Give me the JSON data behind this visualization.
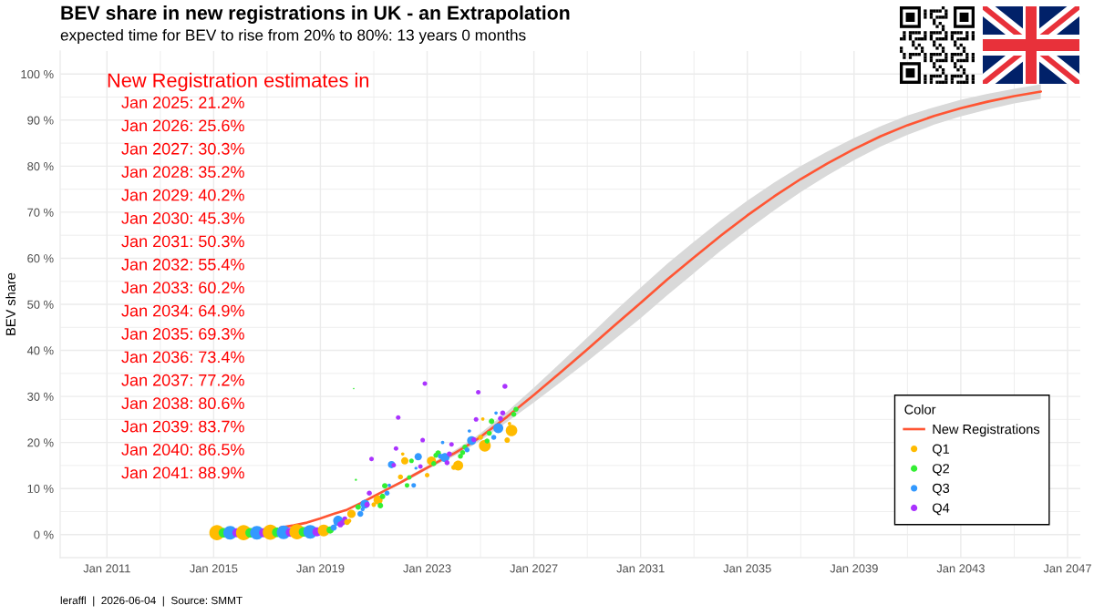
{
  "chart_data": {
    "type": "bubble",
    "title": "BEV share in new registrations in UK - an Extrapolation",
    "subtitle": "expected time for BEV to rise from 20% to 80%: 13 years 0 months",
    "ylabel": "BEV share",
    "legend_title": "Color",
    "annotations": [
      "New Registration estimates in",
      "Jan 2025: 21.2%",
      "Jan 2026: 25.6%",
      "Jan 2027: 30.3%",
      "Jan 2028: 35.2%",
      "Jan 2029: 40.2%",
      "Jan 2030: 45.3%",
      "Jan 2031: 50.3%",
      "Jan 2032: 55.4%",
      "Jan 2033: 60.2%",
      "Jan 2034: 64.9%",
      "Jan 2035: 69.3%",
      "Jan 2036: 73.4%",
      "Jan 2037: 77.2%",
      "Jan 2038: 80.6%",
      "Jan 2039: 83.7%",
      "Jan 2040: 86.5%",
      "Jan 2041: 88.9%",
      "leraffl  |  2026-06-04  |  Source: SMMT"
    ],
    "xlim": [
      "2009-04-01",
      "2047-06-25"
    ],
    "xticks": [
      {
        "value": "2011-01",
        "label": "Jan 2011"
      },
      {
        "value": "2013-01",
        "label": null
      },
      {
        "value": "2015-01",
        "label": "Jan 2015"
      },
      {
        "value": "2017-01",
        "label": null
      },
      {
        "value": "2019-01",
        "label": "Jan 2019"
      },
      {
        "value": "2021-01",
        "label": null
      },
      {
        "value": "2023-01",
        "label": "Jan 2023"
      },
      {
        "value": "2025-01",
        "label": null
      },
      {
        "value": "2027-01",
        "label": "Jan 2027"
      },
      {
        "value": "2029-01",
        "label": null
      },
      {
        "value": "2031-01",
        "label": "Jan 2031"
      },
      {
        "value": "2033-01",
        "label": null
      },
      {
        "value": "2035-01",
        "label": "Jan 2035"
      },
      {
        "value": "2037-01",
        "label": null
      },
      {
        "value": "2039-01",
        "label": "Jan 2039"
      },
      {
        "value": "2041-01",
        "label": null
      },
      {
        "value": "2043-01",
        "label": "Jan 2043"
      },
      {
        "value": "2045-01",
        "label": null
      },
      {
        "value": "2047-01",
        "label": "Jan 2047"
      }
    ],
    "ylim": [
      -5,
      105
    ],
    "yticks": [
      {
        "value": 0,
        "label": "0 %"
      },
      {
        "value": 5,
        "label": null
      },
      {
        "value": 10,
        "label": "10 %"
      },
      {
        "value": 15,
        "label": null
      },
      {
        "value": 20,
        "label": "20 %"
      },
      {
        "value": 25,
        "label": null
      },
      {
        "value": 30,
        "label": "30 %"
      },
      {
        "value": 35,
        "label": null
      },
      {
        "value": 40,
        "label": "40 %"
      },
      {
        "value": 45,
        "label": null
      },
      {
        "value": 50,
        "label": "50 %"
      },
      {
        "value": 55,
        "label": null
      },
      {
        "value": 60,
        "label": "60 %"
      },
      {
        "value": 65,
        "label": null
      },
      {
        "value": 70,
        "label": "70 %"
      },
      {
        "value": 75,
        "label": null
      },
      {
        "value": 80,
        "label": "80 %"
      },
      {
        "value": 85,
        "label": null
      },
      {
        "value": 90,
        "label": "90 %"
      },
      {
        "value": 95,
        "label": null
      },
      {
        "value": 100,
        "label": "100 %"
      }
    ],
    "grid": true,
    "legend": "bottom right",
    "series": [
      {
        "name": "New Registrations",
        "type": "line",
        "color": "#ff5533",
        "x": [
          "2017-07",
          "2018-01",
          "2018-07",
          "2019-01",
          "2019-07",
          "2020-01",
          "2020-07",
          "2021-01",
          "2021-07",
          "2022-01",
          "2022-07",
          "2023-01",
          "2023-07",
          "2024-01",
          "2024-07",
          "2025-01",
          "2026-01",
          "2027-01",
          "2028-01",
          "2029-01",
          "2030-01",
          "2031-01",
          "2032-01",
          "2033-01",
          "2034-01",
          "2035-01",
          "2036-01",
          "2037-01",
          "2038-01",
          "2039-01",
          "2040-01",
          "2041-01",
          "2042-01",
          "2043-01",
          "2044-01",
          "2045-01",
          "2046-01"
        ],
        "values": [
          1.5,
          2.0,
          2.6,
          3.5,
          4.5,
          5.4,
          6.8,
          8.3,
          9.8,
          11.3,
          12.9,
          14.5,
          16.1,
          17.6,
          19.3,
          21.2,
          25.6,
          30.3,
          35.2,
          40.2,
          45.3,
          50.3,
          55.4,
          60.2,
          64.9,
          69.3,
          73.4,
          77.2,
          80.6,
          83.7,
          86.5,
          88.9,
          90.9,
          92.6,
          94.0,
          95.2,
          96.2
        ],
        "lower": [
          null,
          null,
          null,
          null,
          null,
          null,
          null,
          null,
          9.5,
          11.0,
          12.5,
          14.1,
          15.6,
          17.0,
          18.6,
          20.4,
          24.5,
          28.7,
          33.1,
          37.6,
          42.3,
          47.0,
          52.0,
          56.8,
          61.6,
          66.1,
          70.4,
          74.4,
          78.0,
          81.3,
          84.3,
          86.8,
          89.0,
          90.8,
          92.3,
          93.6,
          94.6
        ],
        "upper": [
          null,
          null,
          null,
          null,
          null,
          null,
          null,
          null,
          10.1,
          11.6,
          13.3,
          14.9,
          16.6,
          18.2,
          20.0,
          22.0,
          26.7,
          31.9,
          37.3,
          42.8,
          48.3,
          53.6,
          58.8,
          63.6,
          68.2,
          72.5,
          76.4,
          80.0,
          83.2,
          86.1,
          88.7,
          91.0,
          92.8,
          94.4,
          95.7,
          96.8,
          97.8
        ]
      },
      {
        "name": "Q1",
        "color": "#ffbb00",
        "marker": "circle",
        "x": [
          "2015-02-15",
          "2016-02-15",
          "2017-02-15",
          "2018-02-15",
          "2019-02-15",
          "2020-01",
          "2020-02",
          "2020-03",
          "2021-01",
          "2021-03",
          "2022-01",
          "2022-02",
          "2022-03",
          "2023-01",
          "2023-03",
          "2024-01",
          "2024-03",
          "2025-01",
          "2025-02",
          "2025-03",
          "2026-01",
          "2026-02",
          "2026-03"
        ],
        "values": [
          0.4,
          0.4,
          0.5,
          0.6,
          0.9,
          2.7,
          3.0,
          4.5,
          6.5,
          7.5,
          12.5,
          17.5,
          16.0,
          12.9,
          16.0,
          14.6,
          15.0,
          21.1,
          25.1,
          19.3,
          20.5,
          24.1,
          22.6
        ],
        "sizes": [
          1.0,
          1.0,
          1.0,
          1.0,
          0.6,
          0.15,
          0.07,
          0.3,
          0.09,
          0.35,
          0.11,
          0.05,
          0.23,
          0.09,
          0.35,
          0.11,
          0.43,
          0.11,
          0.05,
          0.6,
          0.13,
          0.05,
          0.57
        ]
      },
      {
        "name": "Q2",
        "color": "#33ee33",
        "marker": "circle",
        "x": [
          "2015-05-15",
          "2016-05-15",
          "2017-05-15",
          "2018-05-15",
          "2019-05-15",
          "2020-04",
          "2020-05",
          "2020-06",
          "2021-04",
          "2021-05",
          "2021-06",
          "2022-04",
          "2022-05",
          "2022-06",
          "2023-04",
          "2023-05",
          "2023-06",
          "2024-04",
          "2024-05",
          "2024-06",
          "2025-04",
          "2025-05",
          "2025-06",
          "2026-04",
          "2026-05"
        ],
        "values": [
          0.4,
          0.4,
          0.5,
          0.6,
          1.0,
          31.7,
          11.9,
          6.0,
          6.3,
          8.3,
          10.6,
          10.7,
          12.4,
          16.0,
          15.4,
          17.2,
          17.7,
          17.0,
          17.8,
          19.0,
          20.3,
          22.0,
          24.6,
          26.1,
          27.2
        ],
        "sizes": [
          0.4,
          0.4,
          0.4,
          0.4,
          0.23,
          0.01,
          0.02,
          0.13,
          0.13,
          0.13,
          0.13,
          0.09,
          0.09,
          0.09,
          0.11,
          0.11,
          0.13,
          0.11,
          0.11,
          0.11,
          0.11,
          0.11,
          0.13,
          0.11,
          0.11
        ]
      },
      {
        "name": "Q3",
        "color": "#3399ff",
        "marker": "circle",
        "x": [
          "2015-08-15",
          "2016-08-15",
          "2017-08-15",
          "2018-08-15",
          "2019-07",
          "2019-08",
          "2019-09",
          "2020-07",
          "2020-08",
          "2020-09",
          "2021-07",
          "2021-08",
          "2021-09",
          "2022-07",
          "2022-08",
          "2022-09",
          "2023-07",
          "2023-08",
          "2023-09",
          "2024-07",
          "2024-08",
          "2024-09",
          "2025-07",
          "2025-08",
          "2025-09"
        ],
        "values": [
          0.4,
          0.4,
          0.5,
          0.6,
          1.5,
          2.4,
          3.0,
          4.5,
          5.5,
          6.6,
          9.0,
          10.7,
          15.2,
          10.7,
          14.4,
          16.9,
          17.0,
          20.0,
          16.7,
          18.4,
          22.5,
          20.4,
          21.1,
          26.4,
          23.1
        ],
        "sizes": [
          0.81,
          0.81,
          0.81,
          0.81,
          0.17,
          0.07,
          0.43,
          0.15,
          0.07,
          0.35,
          0.11,
          0.05,
          0.23,
          0.09,
          0.04,
          0.23,
          0.11,
          0.05,
          0.35,
          0.11,
          0.05,
          0.35,
          0.11,
          0.05,
          0.43
        ]
      },
      {
        "name": "Q4",
        "color": "#aa33ff",
        "marker": "circle",
        "x": [
          "2015-11-15",
          "2016-11-15",
          "2017-11-15",
          "2018-11-15",
          "2019-10",
          "2019-11",
          "2019-12",
          "2020-10",
          "2020-11",
          "2020-12",
          "2021-10",
          "2021-11",
          "2021-12",
          "2022-10",
          "2022-11",
          "2022-12",
          "2023-10",
          "2023-11",
          "2023-12",
          "2024-10",
          "2024-11",
          "2024-12",
          "2025-10",
          "2025-11",
          "2025-12"
        ],
        "values": [
          0.4,
          0.4,
          0.5,
          0.6,
          2.2,
          2.6,
          3.4,
          6.5,
          9.0,
          16.4,
          15.1,
          18.7,
          25.4,
          14.8,
          20.5,
          32.8,
          15.6,
          17.5,
          19.6,
          20.6,
          25.0,
          30.9,
          25.2,
          26.4,
          32.2
        ],
        "sizes": [
          0.36,
          0.36,
          0.36,
          0.36,
          0.15,
          0.13,
          0.11,
          0.13,
          0.11,
          0.09,
          0.09,
          0.09,
          0.09,
          0.09,
          0.09,
          0.09,
          0.11,
          0.11,
          0.09,
          0.11,
          0.09,
          0.09,
          0.11,
          0.11,
          0.11
        ]
      }
    ]
  }
}
